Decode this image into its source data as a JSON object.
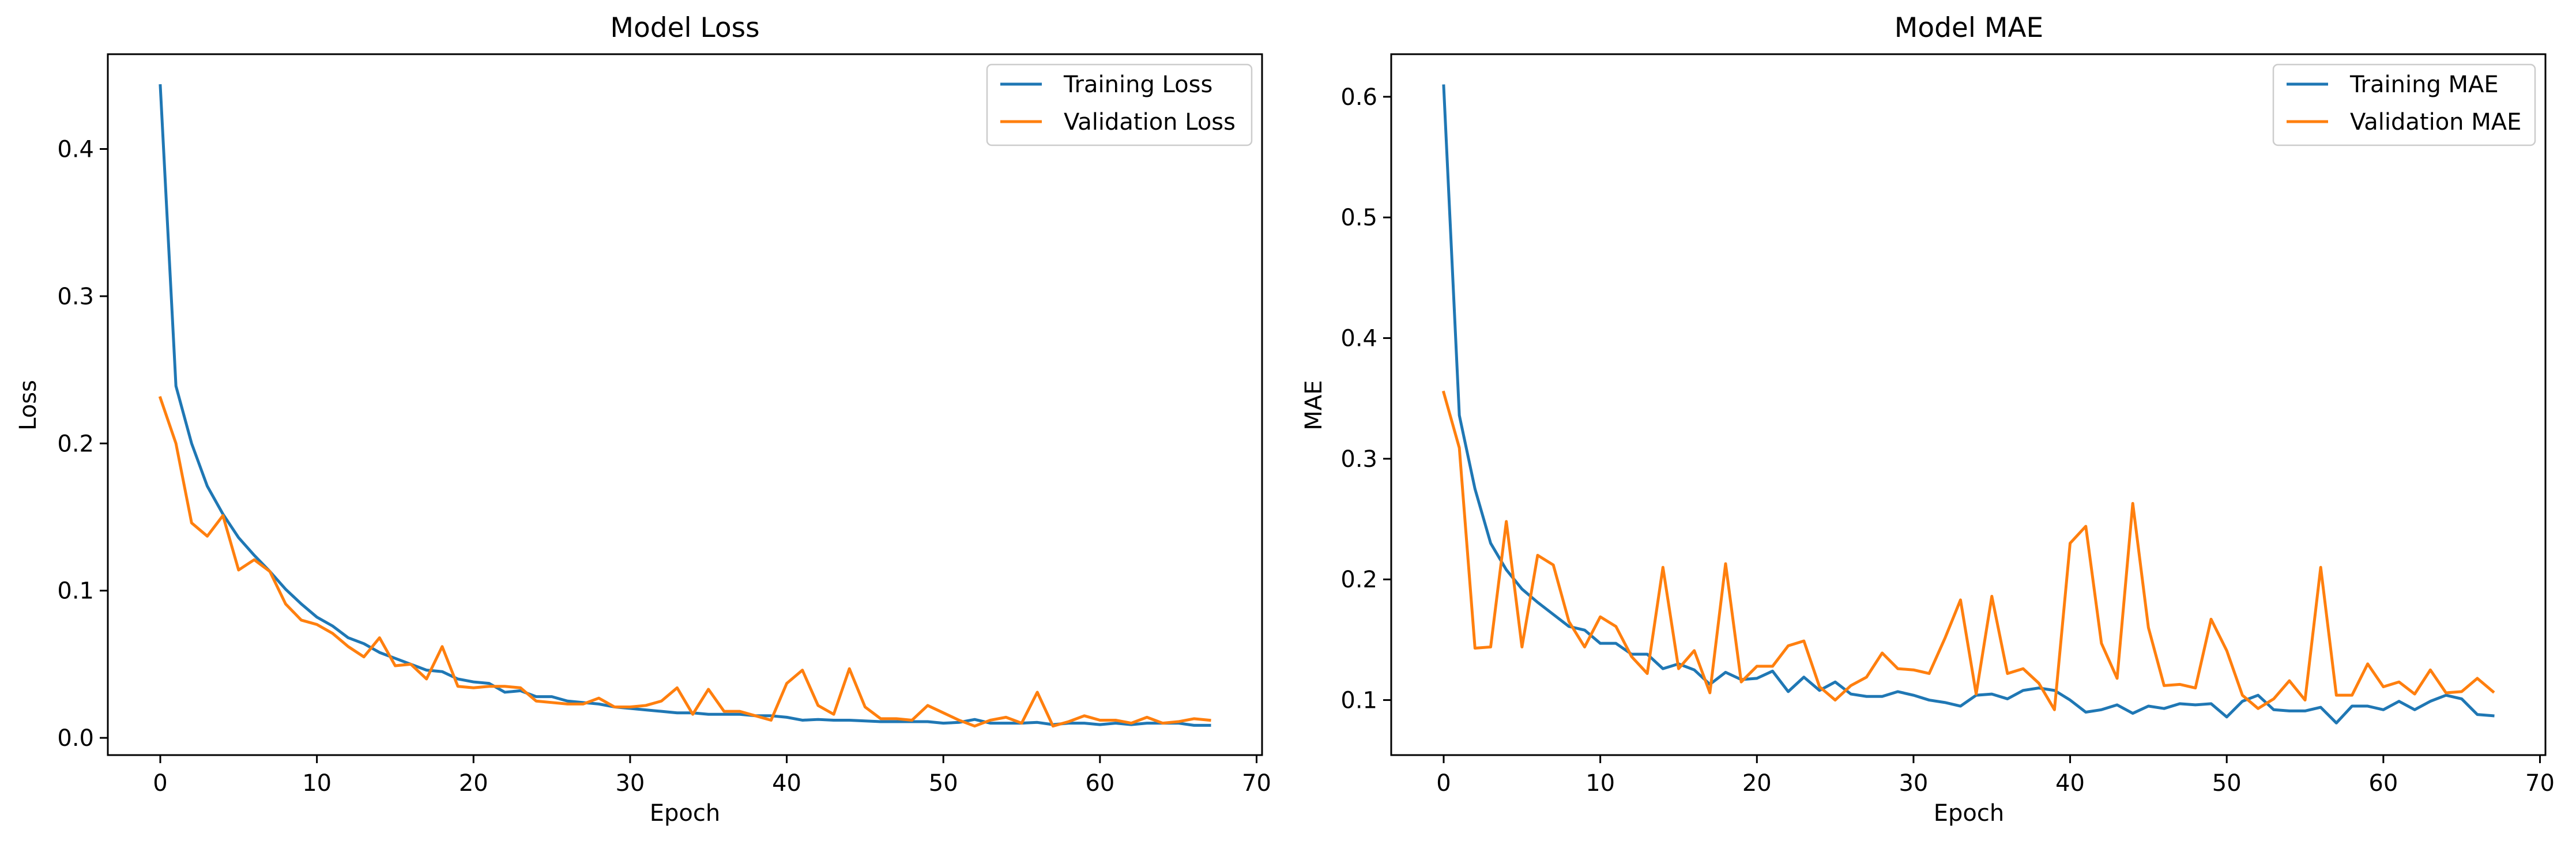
{
  "chart_data": [
    {
      "type": "line",
      "title": "Model Loss",
      "xlabel": "Epoch",
      "ylabel": "Loss",
      "xlim": [
        -3.35,
        70.35
      ],
      "ylim": [
        -0.0117,
        0.4644
      ],
      "xticks": [
        0,
        10,
        20,
        30,
        40,
        50,
        60,
        70
      ],
      "yticks": [
        0.0,
        0.1,
        0.2,
        0.3,
        0.4
      ],
      "ytick_labels": [
        "0.0",
        "0.1",
        "0.2",
        "0.3",
        "0.4"
      ],
      "legend": "top-right",
      "grid": false,
      "series": [
        {
          "name": "Training Loss",
          "color": "#1f77b4",
          "values": [
            0.443,
            0.239,
            0.2,
            0.171,
            0.152,
            0.136,
            0.124,
            0.113,
            0.101,
            0.091,
            0.082,
            0.076,
            0.068,
            0.064,
            0.058,
            0.054,
            0.05,
            0.046,
            0.045,
            0.04,
            0.038,
            0.037,
            0.031,
            0.032,
            0.028,
            0.028,
            0.025,
            0.024,
            0.023,
            0.021,
            0.02,
            0.019,
            0.018,
            0.017,
            0.017,
            0.016,
            0.016,
            0.016,
            0.015,
            0.015,
            0.014,
            0.012,
            0.0125,
            0.012,
            0.012,
            0.0115,
            0.011,
            0.011,
            0.011,
            0.011,
            0.01,
            0.0105,
            0.0125,
            0.01,
            0.01,
            0.01,
            0.0105,
            0.009,
            0.01,
            0.01,
            0.009,
            0.01,
            0.009,
            0.01,
            0.01,
            0.01,
            0.0085,
            0.0085
          ]
        },
        {
          "name": "Validation Loss",
          "color": "#ff7f0e",
          "values": [
            0.231,
            0.2,
            0.146,
            0.137,
            0.151,
            0.114,
            0.121,
            0.113,
            0.091,
            0.08,
            0.077,
            0.071,
            0.062,
            0.055,
            0.068,
            0.049,
            0.05,
            0.04,
            0.062,
            0.035,
            0.034,
            0.035,
            0.035,
            0.034,
            0.025,
            0.024,
            0.023,
            0.023,
            0.027,
            0.021,
            0.021,
            0.022,
            0.025,
            0.034,
            0.016,
            0.033,
            0.018,
            0.018,
            0.015,
            0.012,
            0.037,
            0.046,
            0.022,
            0.016,
            0.047,
            0.021,
            0.013,
            0.013,
            0.012,
            0.022,
            0.017,
            0.012,
            0.008,
            0.012,
            0.014,
            0.01,
            0.031,
            0.008,
            0.011,
            0.015,
            0.012,
            0.012,
            0.01,
            0.014,
            0.01,
            0.011,
            0.013,
            0.012
          ]
        }
      ]
    },
    {
      "type": "line",
      "title": "Model MAE",
      "xlabel": "Epoch",
      "ylabel": "MAE",
      "xlim": [
        -3.35,
        70.35
      ],
      "ylim": [
        0.0544,
        0.6353
      ],
      "xticks": [
        0,
        10,
        20,
        30,
        40,
        50,
        60,
        70
      ],
      "yticks": [
        0.1,
        0.2,
        0.3,
        0.4,
        0.5,
        0.6
      ],
      "ytick_labels": [
        "0.1",
        "0.2",
        "0.3",
        "0.4",
        "0.5",
        "0.6"
      ],
      "legend": "top-right",
      "grid": false,
      "series": [
        {
          "name": "Training MAE",
          "color": "#1f77b4",
          "values": [
            0.609,
            0.336,
            0.275,
            0.23,
            0.208,
            0.192,
            0.181,
            0.171,
            0.161,
            0.158,
            0.147,
            0.147,
            0.138,
            0.138,
            0.126,
            0.13,
            0.125,
            0.113,
            0.123,
            0.117,
            0.118,
            0.124,
            0.107,
            0.119,
            0.108,
            0.115,
            0.105,
            0.103,
            0.103,
            0.107,
            0.104,
            0.1,
            0.098,
            0.095,
            0.104,
            0.105,
            0.101,
            0.108,
            0.11,
            0.108,
            0.1,
            0.09,
            0.092,
            0.096,
            0.089,
            0.095,
            0.093,
            0.097,
            0.096,
            0.097,
            0.086,
            0.099,
            0.104,
            0.092,
            0.091,
            0.091,
            0.094,
            0.081,
            0.095,
            0.095,
            0.092,
            0.099,
            0.092,
            0.099,
            0.104,
            0.101,
            0.088,
            0.087
          ]
        },
        {
          "name": "Validation MAE",
          "color": "#ff7f0e",
          "values": [
            0.355,
            0.309,
            0.143,
            0.144,
            0.248,
            0.144,
            0.22,
            0.212,
            0.165,
            0.144,
            0.169,
            0.161,
            0.136,
            0.122,
            0.21,
            0.126,
            0.141,
            0.106,
            0.213,
            0.115,
            0.128,
            0.128,
            0.145,
            0.149,
            0.111,
            0.1,
            0.112,
            0.119,
            0.139,
            0.126,
            0.125,
            0.122,
            0.151,
            0.183,
            0.105,
            0.186,
            0.122,
            0.126,
            0.114,
            0.092,
            0.23,
            0.244,
            0.147,
            0.118,
            0.263,
            0.16,
            0.112,
            0.113,
            0.11,
            0.167,
            0.141,
            0.104,
            0.093,
            0.101,
            0.116,
            0.1,
            0.21,
            0.104,
            0.104,
            0.13,
            0.111,
            0.115,
            0.105,
            0.125,
            0.106,
            0.107,
            0.118,
            0.107
          ]
        }
      ]
    }
  ]
}
